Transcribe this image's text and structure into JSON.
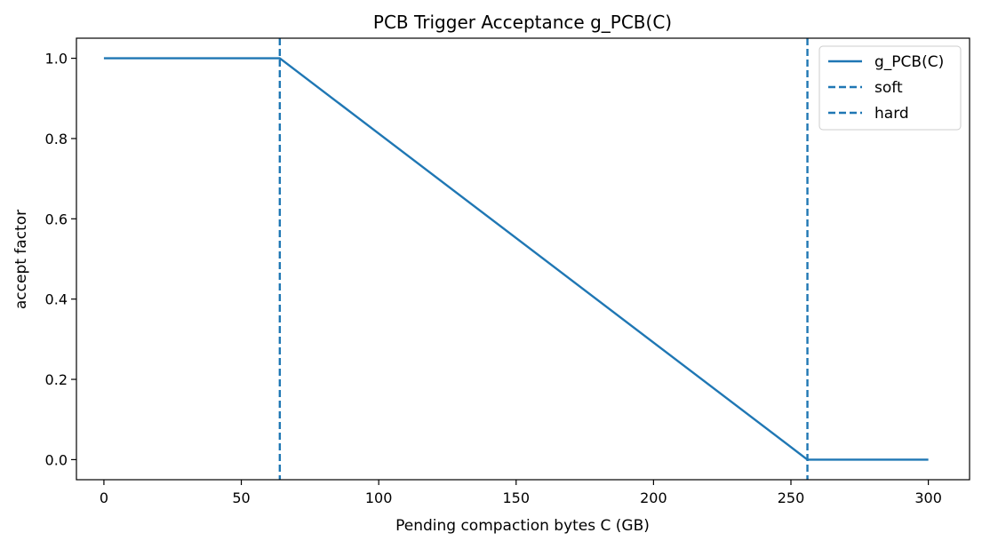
{
  "chart_data": {
    "type": "line",
    "title": "PCB Trigger Acceptance g_PCB(C)",
    "xlabel": "Pending compaction bytes C (GB)",
    "ylabel": "accept factor",
    "xlim": [
      -10,
      315
    ],
    "ylim": [
      -0.05,
      1.05
    ],
    "xticks": [
      0,
      50,
      100,
      150,
      200,
      250,
      300
    ],
    "xtick_labels": [
      "0",
      "50",
      "100",
      "150",
      "200",
      "250",
      "300"
    ],
    "yticks": [
      0.0,
      0.2,
      0.4,
      0.6,
      0.8,
      1.0
    ],
    "ytick_labels": [
      "0.0",
      "0.2",
      "0.4",
      "0.6",
      "0.8",
      "1.0"
    ],
    "grid": false,
    "legend_position": "top-right",
    "series": [
      {
        "name": "g_PCB(C)",
        "style": "solid",
        "color": "#1f77b4",
        "x": [
          0,
          64,
          256,
          300
        ],
        "y": [
          1.0,
          1.0,
          0.0,
          0.0
        ]
      }
    ],
    "vlines": [
      {
        "name": "soft",
        "x": 64,
        "style": "dashed",
        "color": "#1f77b4"
      },
      {
        "name": "hard",
        "x": 256,
        "style": "dashed",
        "color": "#1f77b4"
      }
    ]
  }
}
